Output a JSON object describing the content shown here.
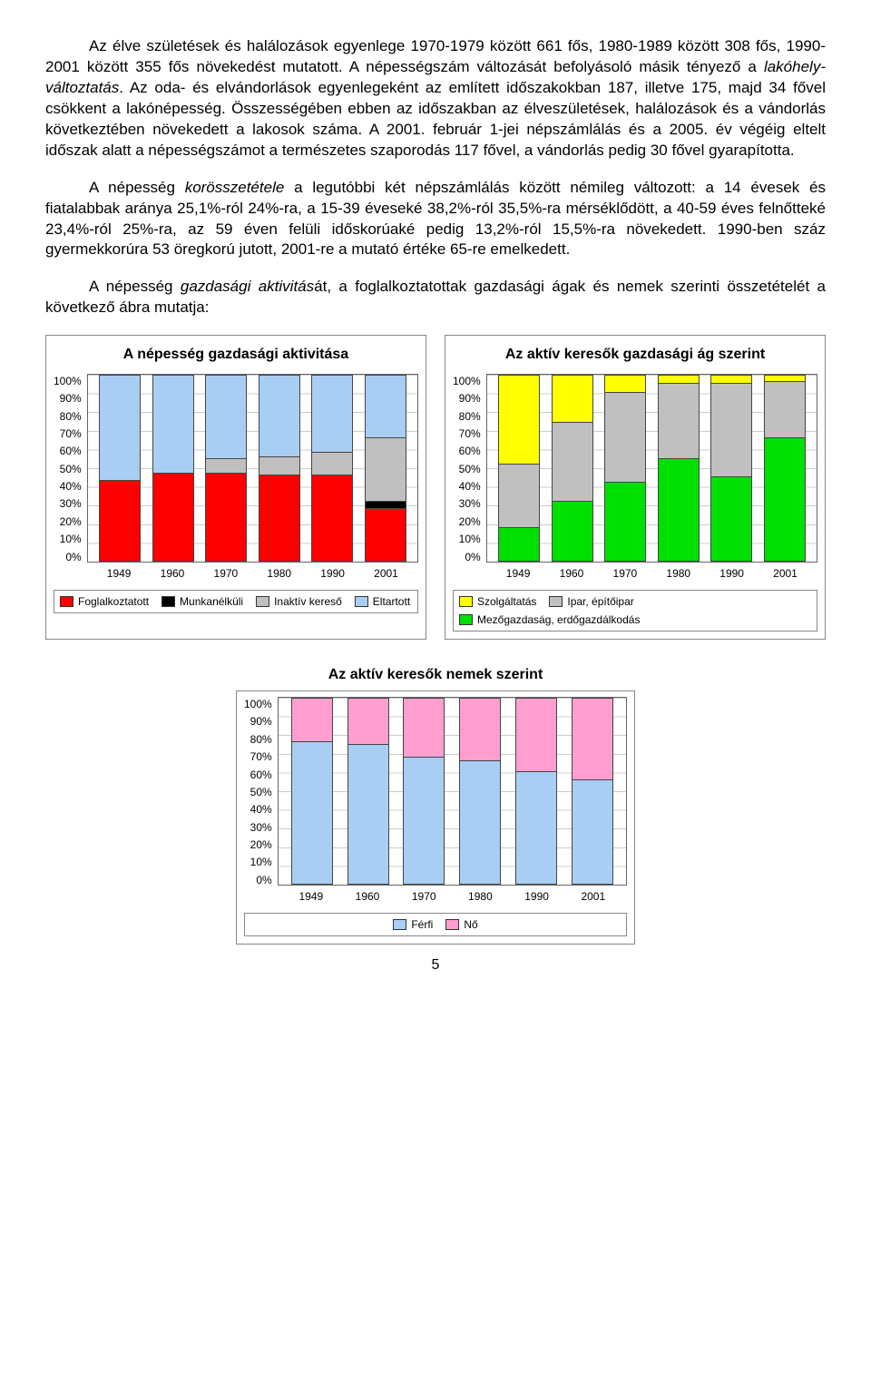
{
  "paragraphs": {
    "p1_a": "Az élve születések és halálozások egyenlege 1970-1979 között 661 fős, 1980-1989 között 308 fős, 1990-2001 között 355 fős növekedést mutatott. A népességszám változását befolyásoló másik tényező a ",
    "p1_i": "lakóhely-változtatás",
    "p1_b": ". Az oda- és elvándorlások egyenlegeként az említett időszakokban 187, illetve 175, majd 34 fővel csökkent a lakónépesség. Összességében ebben az időszakban az élveszületések, halálozások és a vándorlás következtében növekedett a lakosok száma. A 2001. február 1-jei népszámlálás és a 2005. év végéig eltelt időszak alatt a népességszámot a természetes szaporodás 117 fővel, a vándorlás pedig 30 fővel gyarapította.",
    "p2_a": "A népesség ",
    "p2_i": "korösszetétele",
    "p2_b": " a legutóbbi két népszámlálás között némileg változott: a 14 évesek és fiatalabbak aránya 25,1%-ról 24%-ra, a 15-39 éveseké 38,2%-ról 35,5%-ra mérséklődött, a 40-59 éves felnőtteké 23,4%-ról 25%-ra, az 59 éven felüli időskorúaké pedig 13,2%-ról 15,5%-ra növekedett. 1990-ben száz gyermekkorúra 53 öregkorú jutott, 2001-re a mutató értéke 65-re emelkedett.",
    "p3_a": "A népesség ",
    "p3_i": "gazdasági aktivitás",
    "p3_b": "át, a foglalkoztatottak gazdasági ágak és nemek szerinti összetételét a következő ábra mutatja:"
  },
  "chart1": {
    "title": "A népesség gazdasági aktivitása",
    "type": "stacked-bar",
    "y_ticks": [
      "0%",
      "10%",
      "20%",
      "30%",
      "40%",
      "50%",
      "60%",
      "70%",
      "80%",
      "90%",
      "100%"
    ],
    "x_labels": [
      "1949",
      "1960",
      "1970",
      "1980",
      "1990",
      "2001"
    ],
    "series": [
      "Foglalkoztatott",
      "Munkanélküli",
      "Inaktív kereső",
      "Eltartott"
    ],
    "colors": [
      "#ff0000",
      "#000000",
      "#c0c0c0",
      "#a9cef4"
    ],
    "data": [
      [
        43,
        0,
        0,
        57
      ],
      [
        47,
        0,
        0,
        53
      ],
      [
        47,
        0,
        8,
        45
      ],
      [
        46,
        0,
        10,
        44
      ],
      [
        46,
        0,
        12,
        42
      ],
      [
        28,
        4,
        34,
        34
      ]
    ]
  },
  "chart2": {
    "title": "Az aktív keresők gazdasági ág szerint",
    "type": "stacked-bar",
    "y_ticks": [
      "0%",
      "10%",
      "20%",
      "30%",
      "40%",
      "50%",
      "60%",
      "70%",
      "80%",
      "90%",
      "100%"
    ],
    "x_labels": [
      "1949",
      "1960",
      "1970",
      "1980",
      "1990",
      "2001"
    ],
    "series": [
      "Szolgáltatás",
      "Ipar, építőipar",
      "Mezőgazdaság, erdőgazdálkodás"
    ],
    "colors": [
      "#ffff00",
      "#c0c0c0",
      "#00e000"
    ],
    "data": [
      [
        48,
        34,
        18
      ],
      [
        26,
        42,
        32
      ],
      [
        10,
        48,
        42
      ],
      [
        5,
        40,
        55
      ],
      [
        5,
        50,
        45
      ],
      [
        4,
        30,
        66
      ]
    ],
    "order_bottom_to_top": [
      "Mezőgazdaság, erdőgazdálkodás",
      "Ipar, építőipar",
      "Szolgáltatás"
    ]
  },
  "chart3": {
    "title": "Az aktív keresők nemek szerint",
    "type": "stacked-bar",
    "y_ticks": [
      "0%",
      "10%",
      "20%",
      "30%",
      "40%",
      "50%",
      "60%",
      "70%",
      "80%",
      "90%",
      "100%"
    ],
    "x_labels": [
      "1949",
      "1960",
      "1970",
      "1980",
      "1990",
      "2001"
    ],
    "series": [
      "Férfi",
      "Nő"
    ],
    "colors": [
      "#a9cef4",
      "#ff9ecf"
    ],
    "data": [
      [
        76,
        24
      ],
      [
        75,
        25
      ],
      [
        68,
        32
      ],
      [
        66,
        34
      ],
      [
        60,
        40
      ],
      [
        56,
        44
      ]
    ]
  },
  "page_number": "5"
}
